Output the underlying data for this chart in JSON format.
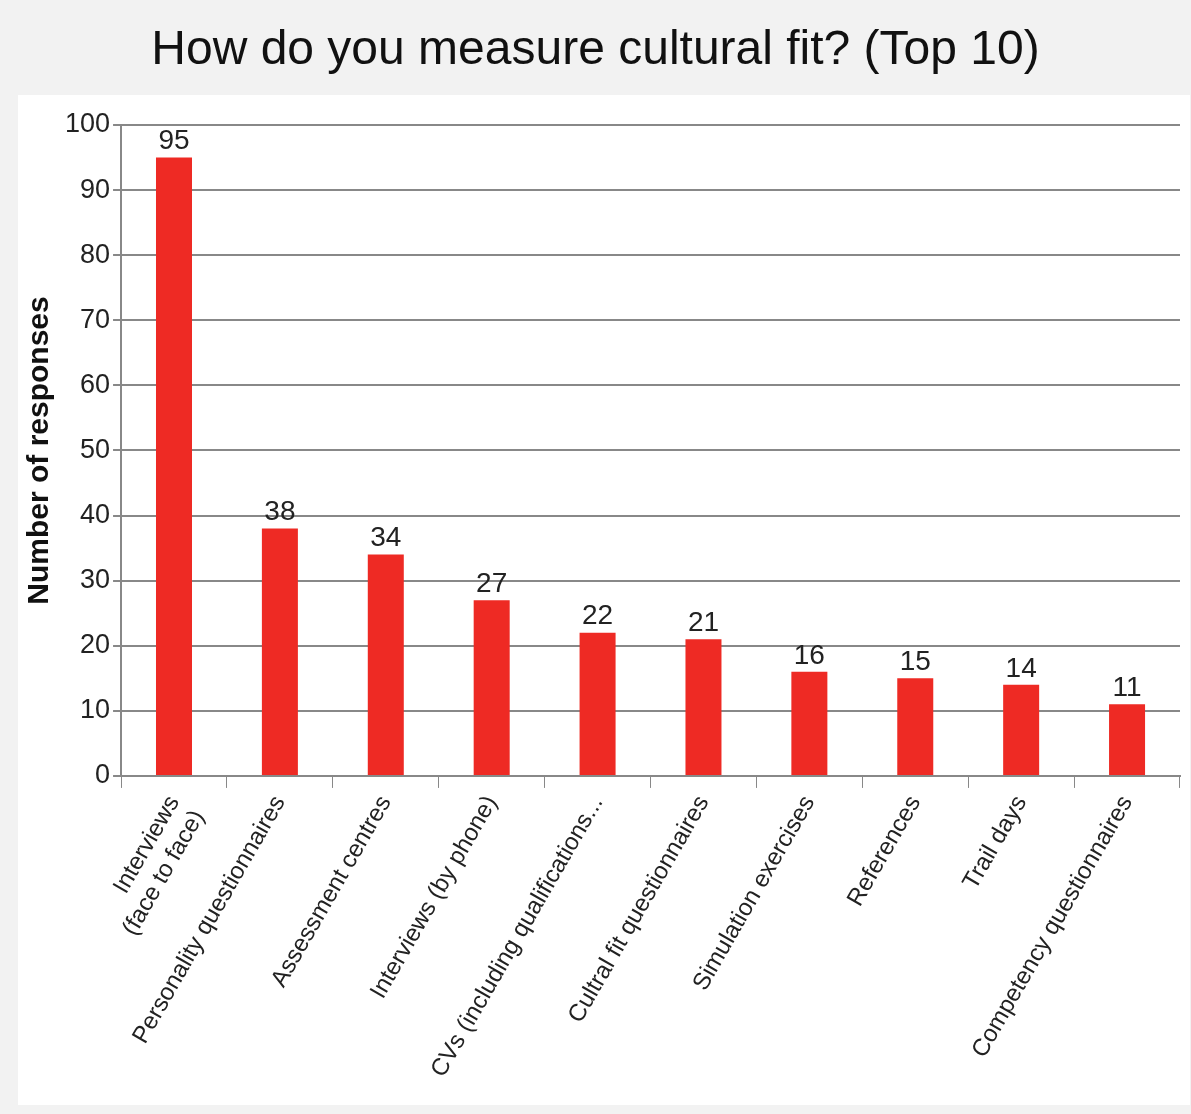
{
  "chart_data": {
    "type": "bar",
    "title": "How do you measure cultural fit? (Top 10)",
    "ylabel": "Number of responses",
    "categories": [
      "Interviews\n(face to face)",
      "Personality questionnaires",
      "Assessment centres",
      "Interviews (by phone)",
      "CVs (including qualifications...",
      "Cultral fit questionnaires",
      "Simulation exercises",
      "References",
      "Trail days",
      "Competency questionnaires"
    ],
    "values": [
      95,
      38,
      34,
      27,
      22,
      21,
      16,
      15,
      14,
      11
    ],
    "color": "#ee2a24",
    "ylim": [
      0,
      100
    ],
    "yticks": [
      0,
      10,
      20,
      30,
      40,
      50,
      60,
      70,
      80,
      90,
      100
    ],
    "grid": "y",
    "legend": false,
    "data_labels": true
  }
}
